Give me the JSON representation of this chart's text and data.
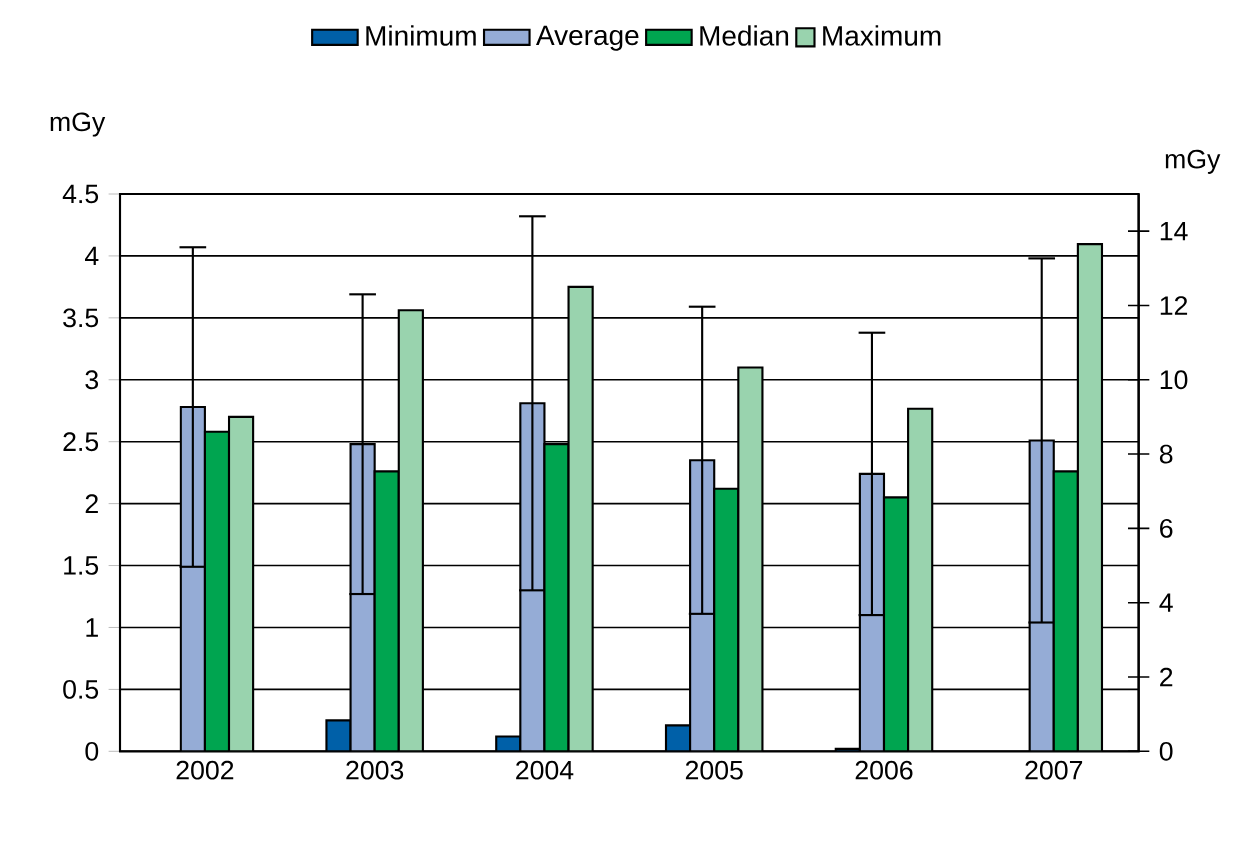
{
  "chart_data": {
    "type": "bar",
    "categories": [
      "2002",
      "2003",
      "2004",
      "2005",
      "2006",
      "2007"
    ],
    "series": [
      {
        "name": "Minimum",
        "color": "#0060a8",
        "values": [
          null,
          0.25,
          0.12,
          0.21,
          0.02,
          null
        ]
      },
      {
        "name": "Average",
        "color": "#95acd6",
        "values": [
          2.78,
          2.48,
          2.81,
          2.35,
          2.24,
          2.51
        ],
        "errors": [
          1.29,
          1.21,
          1.51,
          1.24,
          1.14,
          1.47
        ]
      },
      {
        "name": "Median",
        "color": "#00a550",
        "values": [
          2.58,
          2.26,
          2.48,
          2.12,
          2.05,
          2.26
        ]
      },
      {
        "name": "Maximum",
        "color": "#99d3ae",
        "axis": "y2",
        "values": [
          9.0,
          11.87,
          12.5,
          10.33,
          9.22,
          13.65
        ]
      }
    ],
    "ylabel": "mGy",
    "y2label": "mGy",
    "ylim": [
      0,
      4.5
    ],
    "yticks": [
      0,
      0.5,
      1,
      1.5,
      2,
      2.5,
      3,
      3.5,
      4,
      4.5
    ],
    "y2lim": [
      0,
      15
    ],
    "y2ticks": [
      0,
      2,
      4,
      6,
      8,
      10,
      12,
      14
    ],
    "grid": "y",
    "legend": "top"
  }
}
